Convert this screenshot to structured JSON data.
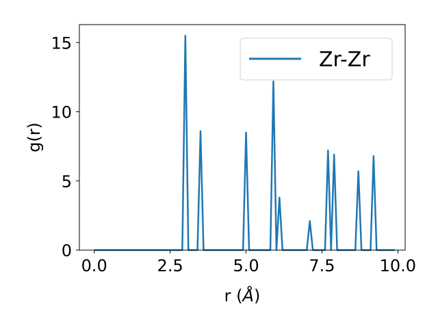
{
  "chart_data": {
    "type": "line",
    "xlabel_main": "r (",
    "xlabel_unit": "Å",
    "xlabel_close": ")",
    "ylabel": "g(r)",
    "xlim": [
      -0.49,
      10.24
    ],
    "ylim": [
      0,
      16.3
    ],
    "xticks": [
      0.0,
      2.5,
      5.0,
      7.5,
      10.0
    ],
    "xtick_labels": [
      "0.0",
      "2.5",
      "5.0",
      "7.5",
      "10.0"
    ],
    "yticks": [
      0,
      5,
      10,
      15
    ],
    "ytick_labels": [
      "0",
      "5",
      "10",
      "15"
    ],
    "grid": false,
    "legend_position": "top-right",
    "series": [
      {
        "name": "Zr-Zr",
        "color": "#1f77b4",
        "x": [
          0.0,
          2.9,
          3.0,
          3.1,
          3.4,
          3.5,
          3.6,
          4.9,
          5.0,
          5.1,
          5.8,
          5.9,
          6.0,
          6.1,
          6.2,
          7.0,
          7.1,
          7.2,
          7.6,
          7.7,
          7.8,
          7.9,
          8.0,
          8.6,
          8.7,
          8.8,
          9.1,
          9.2,
          9.3,
          9.9
        ],
        "y": [
          0,
          0,
          15.5,
          0,
          0,
          8.6,
          0,
          0,
          8.5,
          0,
          0,
          12.2,
          0,
          3.8,
          0,
          0,
          2.1,
          0,
          0,
          7.2,
          0,
          6.9,
          0,
          0,
          5.7,
          0,
          0,
          6.8,
          0,
          0
        ]
      }
    ]
  }
}
